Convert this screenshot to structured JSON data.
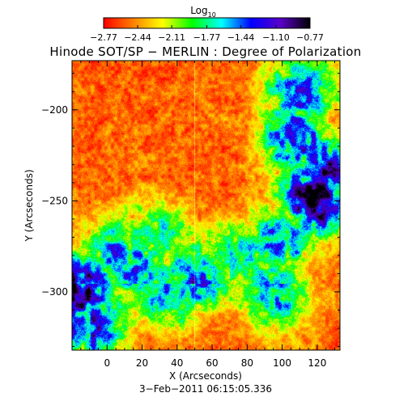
{
  "chart_data": {
    "type": "heatmap",
    "title": "Hinode SOT/SP − MERLIN : Degree of Polarization",
    "xlabel": "X (Arcseconds)",
    "ylabel": "Y (Arcseconds)",
    "xlim": [
      -20,
      133
    ],
    "ylim": [
      -332,
      -173
    ],
    "x_ticks": [
      0,
      20,
      40,
      60,
      80,
      100,
      120
    ],
    "y_ticks": [
      -300,
      -250,
      -200
    ],
    "x_tick_labels": [
      "0",
      "20",
      "40",
      "60",
      "80",
      "100",
      "120"
    ],
    "y_tick_labels": [
      "−300",
      "−250",
      "−200"
    ],
    "timestamp": "3−Feb−2011 06:15:05.336",
    "colorbar": {
      "title_base": "Log",
      "title_sub": "10",
      "range": [
        -2.77,
        -0.77
      ],
      "ticks": [
        -2.77,
        -2.44,
        -2.11,
        -1.77,
        -1.44,
        -1.1,
        -0.77
      ],
      "tick_labels": [
        "−2.77",
        "−2.44",
        "−2.11",
        "−1.77",
        "−1.44",
        "−1.10",
        "−0.77"
      ],
      "colormap": [
        "#ff0000",
        "#ff7f00",
        "#ffff00",
        "#00ff00",
        "#00ffff",
        "#0000ff",
        "#5a00c8",
        "#000000"
      ]
    },
    "strong_polarization_regions": [
      {
        "x": 118,
        "y": -250,
        "level": -0.8
      },
      {
        "x": 125,
        "y": -235,
        "level": -1.1
      },
      {
        "x": 108,
        "y": -215,
        "level": -1.3
      },
      {
        "x": 112,
        "y": -190,
        "level": -1.5
      },
      {
        "x": 30,
        "y": -268,
        "level": -1.9
      },
      {
        "x": 5,
        "y": -278,
        "level": -1.6
      },
      {
        "x": 15,
        "y": -285,
        "level": -1.5
      },
      {
        "x": -16,
        "y": -298,
        "level": -0.9
      },
      {
        "x": -10,
        "y": -318,
        "level": -1.3
      },
      {
        "x": 35,
        "y": -300,
        "level": -1.6
      },
      {
        "x": 50,
        "y": -292,
        "level": -1.5
      },
      {
        "x": 100,
        "y": -270,
        "level": -1.5
      },
      {
        "x": 95,
        "y": -300,
        "level": -1.6
      },
      {
        "x": 75,
        "y": -280,
        "level": -1.8
      }
    ]
  }
}
